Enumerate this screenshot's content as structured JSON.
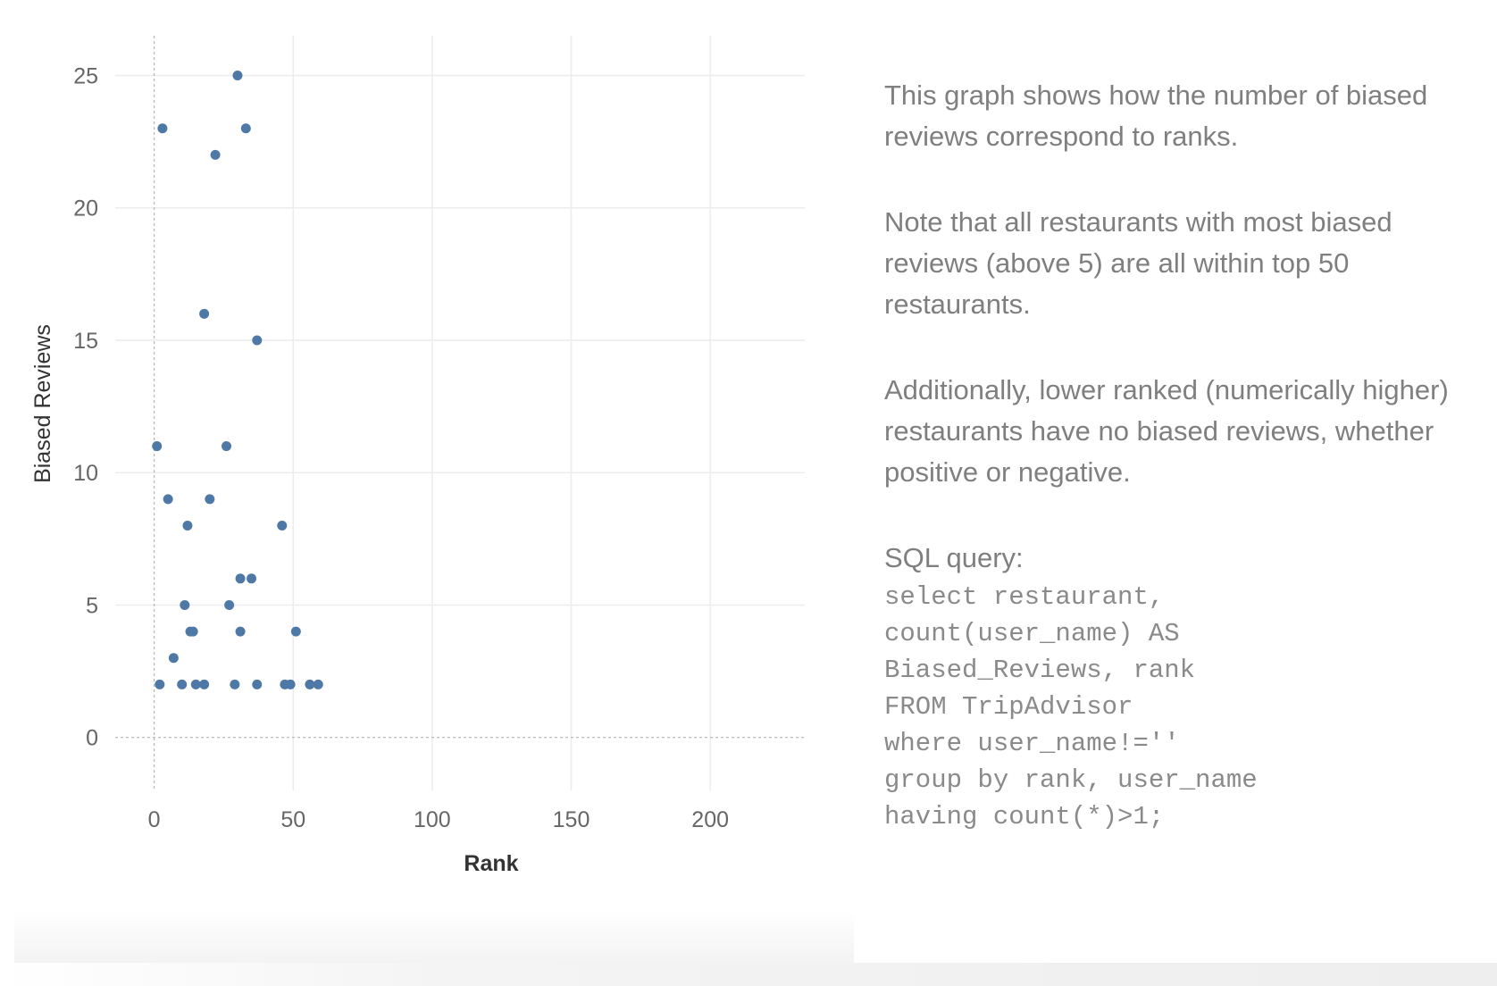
{
  "description": {
    "paragraphs": [
      "This graph shows how the number of biased reviews correspond to ranks.",
      "Note that all restaurants with most biased reviews (above 5) are all within top 50 restaurants.",
      "Additionally, lower ranked (numerically higher) restaurants have no biased reviews, whether positive or negative."
    ],
    "sql_label": "SQL query:",
    "sql_lines": [
      "select restaurant,",
      "count(user_name) AS",
      "Biased_Reviews, rank",
      "FROM TripAdvisor",
      "where user_name!=''",
      "group by rank, user_name",
      "having count(*)>1;"
    ]
  },
  "chart_data": {
    "type": "scatter",
    "title": "",
    "xlabel": "Rank",
    "ylabel": "Biased Reviews",
    "xlim": [
      -14,
      234
    ],
    "ylim": [
      -2,
      26.5
    ],
    "x_ticks": [
      0,
      50,
      100,
      150,
      200
    ],
    "y_ticks": [
      0,
      5,
      10,
      15,
      20,
      25
    ],
    "grid": true,
    "legend": "none",
    "marker_color": "#4e79a7",
    "series": [
      {
        "points": [
          {
            "x": 30,
            "y": 25
          },
          {
            "x": 3,
            "y": 23
          },
          {
            "x": 33,
            "y": 23
          },
          {
            "x": 22,
            "y": 22
          },
          {
            "x": 18,
            "y": 16
          },
          {
            "x": 37,
            "y": 15
          },
          {
            "x": 1,
            "y": 11
          },
          {
            "x": 26,
            "y": 11
          },
          {
            "x": 5,
            "y": 9
          },
          {
            "x": 20,
            "y": 9
          },
          {
            "x": 12,
            "y": 8
          },
          {
            "x": 46,
            "y": 8
          },
          {
            "x": 31,
            "y": 6
          },
          {
            "x": 35,
            "y": 6
          },
          {
            "x": 11,
            "y": 5
          },
          {
            "x": 27,
            "y": 5
          },
          {
            "x": 13,
            "y": 4
          },
          {
            "x": 14,
            "y": 4
          },
          {
            "x": 31,
            "y": 4
          },
          {
            "x": 51,
            "y": 4
          },
          {
            "x": 7,
            "y": 3
          },
          {
            "x": 2,
            "y": 2
          },
          {
            "x": 10,
            "y": 2
          },
          {
            "x": 15,
            "y": 2
          },
          {
            "x": 18,
            "y": 2
          },
          {
            "x": 29,
            "y": 2
          },
          {
            "x": 37,
            "y": 2
          },
          {
            "x": 47,
            "y": 2
          },
          {
            "x": 49,
            "y": 2
          },
          {
            "x": 56,
            "y": 2
          },
          {
            "x": 59,
            "y": 2
          }
        ]
      }
    ]
  }
}
